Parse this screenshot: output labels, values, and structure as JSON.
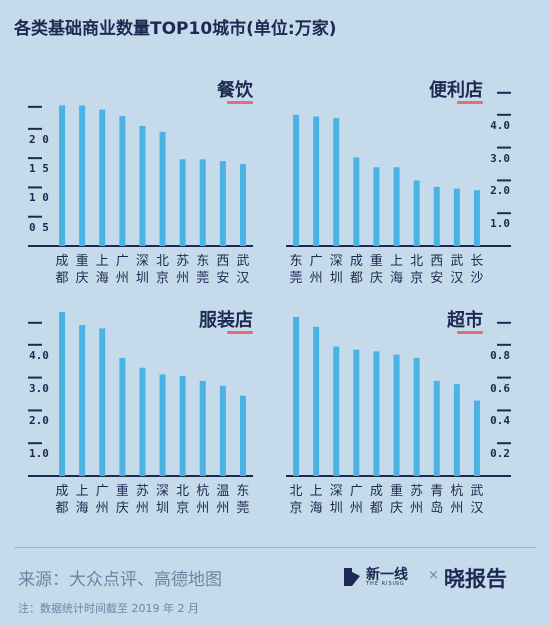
{
  "title": "各类基础商业数量TOP10城市(单位:万家)",
  "colors": {
    "bar": "#4ab3e3",
    "axis": "#1b2a52",
    "underline": "#e86b79",
    "background": "#c5dbeb"
  },
  "chart_data": [
    {
      "type": "bar",
      "title": "餐饮",
      "categories": [
        "成都",
        "重庆",
        "上海",
        "广州",
        "深圳",
        "北京",
        "苏州",
        "东莞",
        "西安",
        "武汉"
      ],
      "values": [
        2.4,
        2.4,
        2.33,
        2.22,
        2.05,
        1.95,
        1.48,
        1.48,
        1.45,
        1.4
      ],
      "ylim": [
        0,
        2.8
      ],
      "yticks": [
        0.5,
        1.0,
        1.5,
        2.0
      ],
      "yticklabels": [
        "0 5",
        "1 0",
        "1 5",
        "2 0"
      ],
      "axis_side": "left"
    },
    {
      "type": "bar",
      "title": "便利店",
      "categories": [
        "东莞",
        "广州",
        "深圳",
        "成都",
        "重庆",
        "上海",
        "北京",
        "西安",
        "武汉",
        "长沙"
      ],
      "values": [
        4.0,
        3.95,
        3.9,
        2.7,
        2.4,
        2.4,
        2.0,
        1.8,
        1.75,
        1.7
      ],
      "ylim": [
        0,
        5.0
      ],
      "yticks": [
        1.0,
        2.0,
        3.0,
        4.0
      ],
      "yticklabels": [
        "1.0",
        "2.0",
        "3.0",
        "4.0"
      ],
      "axis_side": "right"
    },
    {
      "type": "bar",
      "title": "服装店",
      "categories": [
        "成都",
        "上海",
        "广州",
        "重庆",
        "苏州",
        "深圳",
        "北京",
        "杭州",
        "温州",
        "东莞"
      ],
      "values": [
        5.0,
        4.6,
        4.5,
        3.6,
        3.3,
        3.1,
        3.05,
        2.9,
        2.75,
        2.45
      ],
      "ylim": [
        0,
        5.0
      ],
      "yticks": [
        1.0,
        2.0,
        3.0,
        4.0
      ],
      "yticklabels": [
        "1.0",
        "2.0",
        "3.0",
        "4.0"
      ],
      "axis_side": "left"
    },
    {
      "type": "bar",
      "title": "超市",
      "categories": [
        "北京",
        "上海",
        "深圳",
        "广州",
        "成都",
        "重庆",
        "苏州",
        "青岛",
        "杭州",
        "武汉"
      ],
      "values": [
        0.97,
        0.91,
        0.79,
        0.77,
        0.76,
        0.74,
        0.72,
        0.58,
        0.56,
        0.46
      ],
      "ylim": [
        0,
        1.0
      ],
      "yticks": [
        0.2,
        0.4,
        0.6,
        0.8
      ],
      "yticklabels": [
        "0.2",
        "0.4",
        "0.6",
        "0.8"
      ],
      "axis_side": "right"
    }
  ],
  "footer": {
    "source": "来源：大众点评、高德地图",
    "note": "注：数据统计时间截至 2019 年 2 月",
    "brand_name": "新一线",
    "brand_sub": "THE RISING",
    "separator": "×",
    "partner": "晓报告"
  }
}
